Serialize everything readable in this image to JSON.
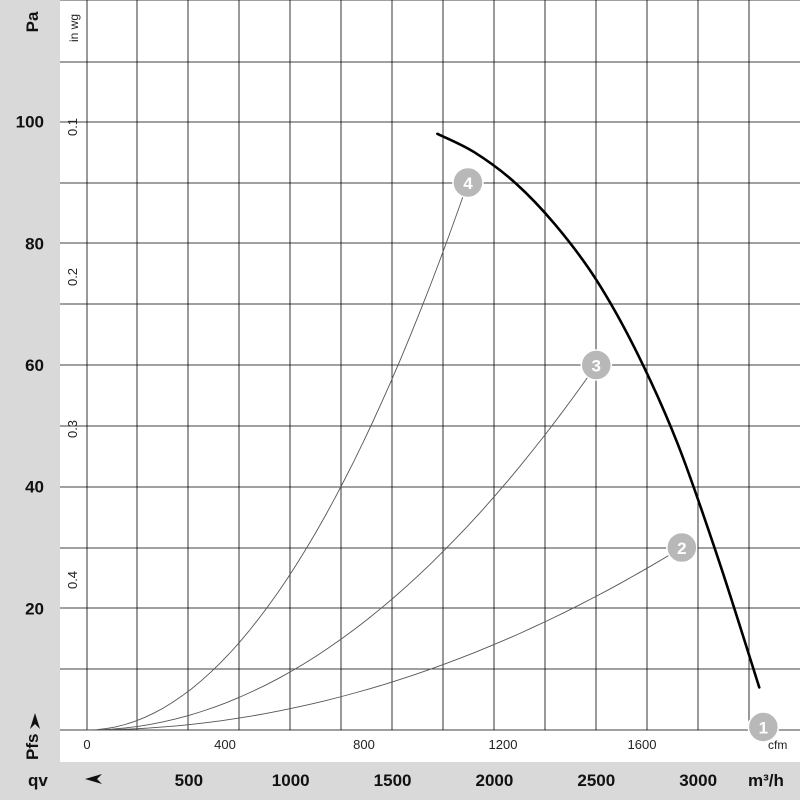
{
  "chart_data": {
    "type": "line",
    "y_axis_left": {
      "unit": "Pa",
      "ticks": [
        20,
        40,
        60,
        80,
        100
      ],
      "range": [
        0,
        120
      ]
    },
    "y_axis_inner": {
      "unit": "in wg",
      "ticks": [
        "0.1",
        "0.2",
        "0.3",
        "0.4"
      ]
    },
    "x_axis_cfm": {
      "unit": "cfm",
      "ticks": [
        "0",
        "400",
        "800",
        "1200",
        "1600"
      ]
    },
    "x_axis_bottom": {
      "symbol": "qv",
      "unit": "m³/h",
      "ticks": [
        500,
        1000,
        1500,
        2000,
        2500,
        3000
      ],
      "range": [
        0,
        3500
      ]
    },
    "pressure_symbol": "Pfs",
    "fan_curve": {
      "x": [
        1720,
        1900,
        2100,
        2300,
        2500,
        2700,
        2900,
        3100,
        3300
      ],
      "y": [
        98,
        95,
        90,
        83,
        74,
        62,
        47,
        28,
        7
      ]
    },
    "operating_points": [
      {
        "label": "1",
        "x": 3320,
        "y": 0.5
      },
      {
        "label": "2",
        "x": 2920,
        "y": 30
      },
      {
        "label": "3",
        "x": 2500,
        "y": 60
      },
      {
        "label": "4",
        "x": 1870,
        "y": 90
      }
    ],
    "grid": true
  }
}
